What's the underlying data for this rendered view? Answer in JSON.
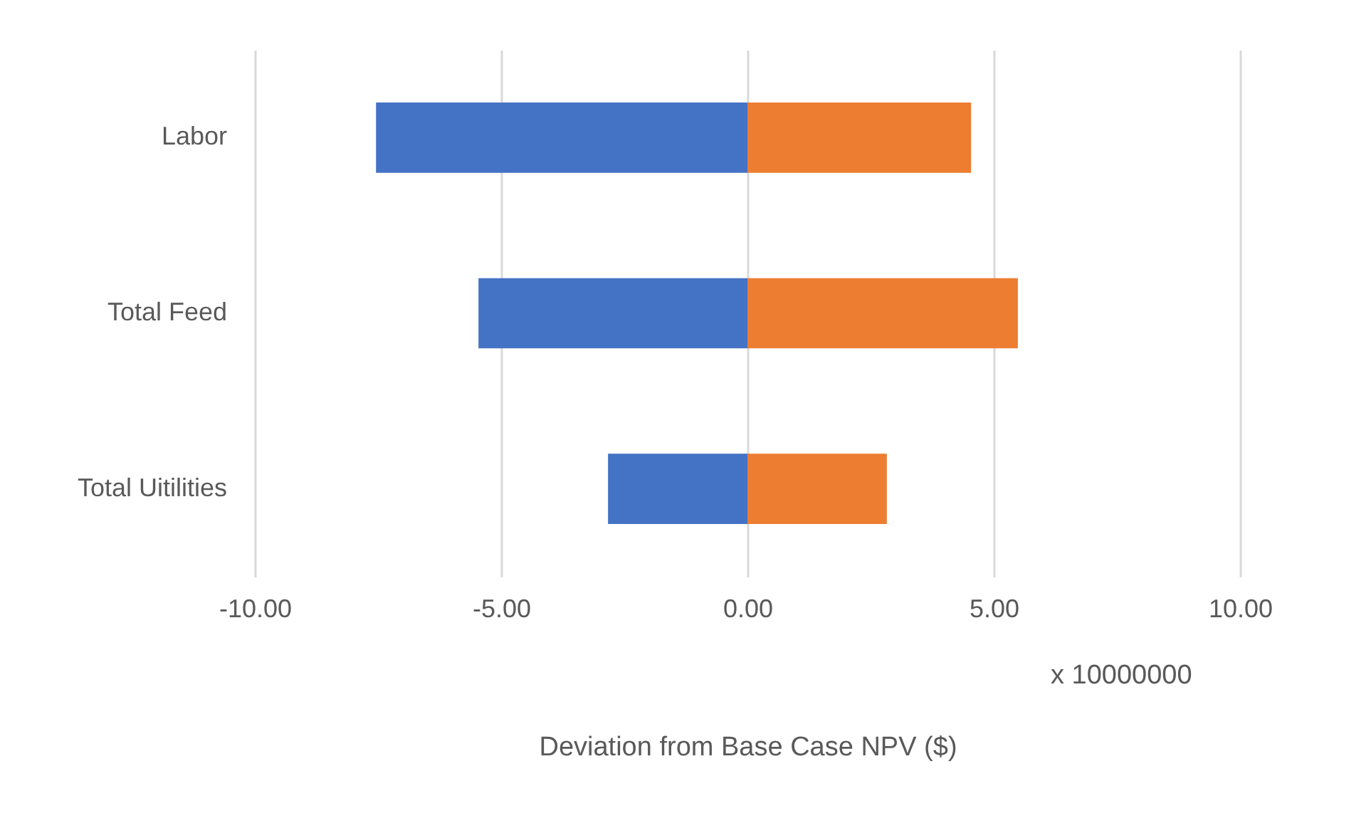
{
  "chart_data": {
    "type": "bar",
    "orientation": "horizontal",
    "stacked": true,
    "categories": [
      "Labor",
      "Total Feed",
      "Total Uitilities"
    ],
    "series": [
      {
        "color": "#4472c4",
        "values": [
          -7.54,
          -5.46,
          -2.83
        ]
      },
      {
        "color": "#ed7d31",
        "values": [
          4.54,
          5.49,
          2.83
        ]
      }
    ],
    "xlim": [
      -10,
      10
    ],
    "xticks": [
      {
        "value": -10,
        "label": "-10.00"
      },
      {
        "value": -5,
        "label": "-5.00"
      },
      {
        "value": 0,
        "label": "0.00"
      },
      {
        "value": 5,
        "label": "5.00"
      },
      {
        "value": 10,
        "label": "10.00"
      }
    ],
    "xlabel": "Deviation from Base Case NPV ($)",
    "annotations": [
      "x 10000000"
    ],
    "grid": "x",
    "legend": false
  }
}
